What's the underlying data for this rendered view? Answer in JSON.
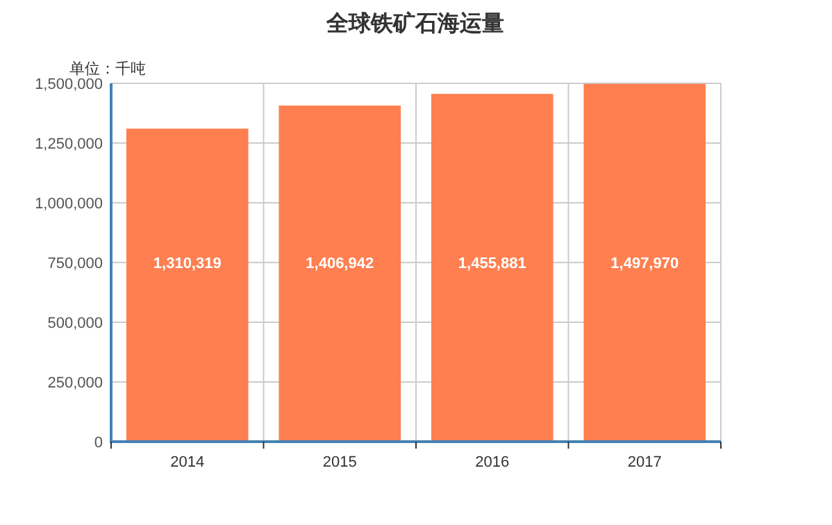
{
  "chart_data": {
    "type": "bar",
    "title": "全球铁矿石海运量",
    "ylabel": "单位：千吨",
    "categories": [
      "2014",
      "2015",
      "2016",
      "2017"
    ],
    "values": [
      1310319,
      1406942,
      1455881,
      1497970
    ],
    "color": "#ff7f50",
    "ylim": [
      0,
      1500000
    ],
    "yticks": [
      {
        "value": 0,
        "label": "0"
      },
      {
        "value": 250000,
        "label": "250,000"
      },
      {
        "value": 500000,
        "label": "500,000"
      },
      {
        "value": 750000,
        "label": "750,000"
      },
      {
        "value": 1000000,
        "label": "1,000,000"
      },
      {
        "value": 1250000,
        "label": "1,250,000"
      },
      {
        "value": 1500000,
        "label": "1,500,000"
      }
    ],
    "value_labels": [
      "1,310,319",
      "1,406,942",
      "1,455,881",
      "1,497,970"
    ],
    "grid": true
  }
}
